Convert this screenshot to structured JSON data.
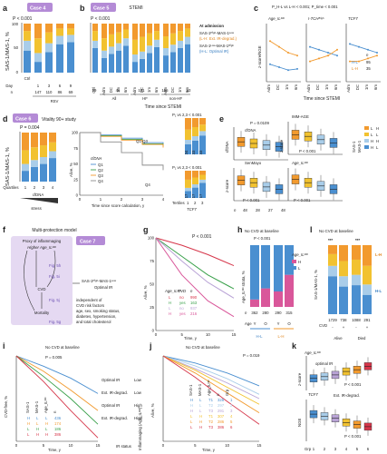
{
  "colors": {
    "blue": "#4a8fd0",
    "lightblue": "#a9cde9",
    "yellow": "#f2c230",
    "orange": "#f29a2e",
    "purple": "#b9a3d6",
    "grey": "#8c8c8c",
    "pink": "#d9579a",
    "red": "#d6364a",
    "green": "#39a04a"
  },
  "panels": {
    "a": "a",
    "b": "b",
    "c": "c",
    "d": "d",
    "e": "e",
    "f": "f",
    "g": "g",
    "h": "h",
    "i": "i",
    "j": "j",
    "k": "k",
    "l": "l"
  },
  "case4": "Case 4",
  "case5": "Case 5",
  "case6": "Case 6",
  "case7": "Case 7",
  "ylab_sasmas": "SAS-1/MAS-1, %",
  "a": {
    "p": "P < 0.001",
    "day_label": "Day",
    "days": [
      "1",
      "3",
      "6",
      "9"
    ],
    "n_label": "n",
    "ns": [
      "147",
      "110",
      "86",
      "69"
    ],
    "group": "RSV",
    "ctrl": "Ctrl",
    "yticks": [
      "0",
      "50",
      "100"
    ],
    "chart_data": {
      "type": "bar",
      "stacked": true,
      "categories": [
        "Ctrl",
        "1",
        "3",
        "6",
        "9"
      ],
      "series": [
        {
          "color": "blue",
          "values": [
            45,
            22,
            42,
            58,
            62
          ]
        },
        {
          "color": "lightblue",
          "values": [
            20,
            18,
            18,
            17,
            15
          ]
        },
        {
          "color": "yellow",
          "values": [
            20,
            30,
            22,
            15,
            13
          ]
        },
        {
          "color": "orange",
          "values": [
            15,
            30,
            18,
            10,
            10
          ]
        }
      ]
    }
  },
  "b": {
    "p": "P < 0.001",
    "title": "STEMI",
    "time_labels": [
      "Adm",
      "DC",
      "1m",
      "6m"
    ],
    "ctrl": "Ctrl",
    "ns": [
      "59",
      "46",
      "101",
      "185",
      "33"
    ],
    "groups": [
      "All",
      "HF",
      "non-HF"
    ],
    "xlabel": "Time since STEMI",
    "legend": [
      {
        "t": "At admission",
        "c": "#222"
      },
      {
        "t": "SAS-1ᴴⁱᵍʰ-MAS-1ᴸᵒʷ",
        "c": "#222"
      },
      {
        "t": "(L-H: Ext. IR-degrad.)",
        "c": "orange"
      },
      {
        "t": "SAS-1ᴸᵒʷ-MAS-1ᴴⁱᵍʰ",
        "c": "#222"
      },
      {
        "t": "(H-L: Optimal IR)",
        "c": "blue"
      }
    ],
    "chart_data": {
      "type": "bar",
      "stacked": true,
      "categories": [
        "Ctrl",
        "Adm",
        "DC",
        "1m",
        "6m",
        "Adm",
        "DC",
        "1m",
        "6m",
        "Adm",
        "DC",
        "1m",
        "6m"
      ],
      "series": [
        {
          "color": "blue",
          "values": [
            50,
            30,
            38,
            45,
            55,
            22,
            28,
            40,
            52,
            35,
            42,
            50,
            58
          ]
        },
        {
          "color": "lightblue",
          "values": [
            15,
            15,
            15,
            15,
            15,
            15,
            15,
            15,
            15,
            15,
            15,
            15,
            15
          ]
        },
        {
          "color": "yellow",
          "values": [
            20,
            25,
            25,
            22,
            18,
            30,
            30,
            25,
            18,
            24,
            23,
            20,
            17
          ]
        },
        {
          "color": "orange",
          "values": [
            15,
            30,
            22,
            18,
            12,
            33,
            27,
            20,
            15,
            26,
            20,
            15,
            10
          ]
        }
      ]
    }
  },
  "c": {
    "header": "P_H-L vs L-H < 0.001; P_time < 0.001",
    "titles": [
      "Age_ILᴰᴰ",
      "I-TCHᴮⁱᵍʰ",
      "TCF7"
    ],
    "ylabel": "z-score/NGE",
    "xlabels": [
      "Adm",
      "DC",
      "1m",
      "6m"
    ],
    "xlabel": "Time since STEMI",
    "legend": [
      "H-L",
      "L-H"
    ],
    "n_label": "n",
    "legend_ns": [
      "95",
      "35"
    ]
  },
  "d": {
    "title": "Vitality 90+ study",
    "p1": "P = 0.004",
    "p2": "P₁ vs 2,3 < 0.001",
    "p3": "P₁ vs 2,3 < 0.001",
    "quartiles": "Quartiles",
    "q": [
      "1",
      "2",
      "3",
      "4"
    ],
    "cfDNA": "cfDNA",
    "stress": "stress",
    "ylabel_surv": "Alive, %",
    "xlabel_surv": "Time since score calculation, y",
    "q1q3": "Q1-Q3",
    "q4": "Q4",
    "legend_title": "cfDNA",
    "legend": [
      "Q1",
      "Q2",
      "Q3",
      "Q4"
    ],
    "tertiles": "Tertiles",
    "t": [
      "1",
      "2",
      "3"
    ],
    "tn1": [
      "34",
      "33",
      "33"
    ],
    "tn2": [
      "17",
      "17",
      "17"
    ],
    "tcf7": "TCF7",
    "yticks": [
      "0",
      "50",
      "100"
    ],
    "sticks": [
      "0",
      "25",
      "50",
      "75",
      "100"
    ],
    "xticks": [
      "0",
      "1",
      "2",
      "3",
      "4"
    ],
    "chart_data": {
      "type": "line",
      "x": [
        0,
        1,
        2,
        3,
        4
      ],
      "series": [
        {
          "name": "Q1",
          "color": "blue",
          "values": [
            100,
            96,
            91,
            84,
            80
          ]
        },
        {
          "name": "Q2",
          "color": "green",
          "values": [
            100,
            95,
            89,
            82,
            79
          ]
        },
        {
          "name": "Q3",
          "color": "orange",
          "values": [
            100,
            94,
            88,
            81,
            76
          ]
        },
        {
          "name": "Q4",
          "color": "grey",
          "values": [
            100,
            85,
            68,
            48,
            40
          ]
        }
      ]
    }
  },
  "e": {
    "titles": [
      "cfDNA",
      "IMM-AGE",
      "SenMayo",
      "Age_ILᴰᴰ"
    ],
    "p": [
      "P = 0.0109",
      "P < 0.001",
      "P < 0.001",
      "P < 0.001"
    ],
    "ylabel1": "cfDNA",
    "ylabel2": "z-score",
    "ylabel3": "z-score",
    "n_label": "n",
    "ns": [
      "48",
      "28",
      "27",
      "48"
    ],
    "legend_title1": "SAS-1",
    "legend_title2": "MAS-1",
    "legend": [
      {
        "k": "L",
        "v": "H",
        "c": "orange"
      },
      {
        "k": "L",
        "v": "L",
        "c": "yellow"
      },
      {
        "k": "H",
        "v": "H",
        "c": "lightblue"
      },
      {
        "k": "H",
        "v": "L",
        "c": "blue"
      }
    ]
  },
  "f": {
    "title": "Multi-protection model",
    "proxy1": "Proxy of inflammaging",
    "proxy2": "Higher Age_ILᴰᴰ",
    "figs": [
      "Fig. 5h",
      "Fig. 5i",
      "Fig. 5j",
      "Fig. 5g"
    ],
    "cvd": "CVD",
    "mortality": "Mortality",
    "box1": "SAS-1ᴴⁱᵍʰ-MAS-1ᴸᵒʷ",
    "box2": "Optimal IR",
    "indep": [
      "independent of",
      "CVD risk factors",
      "age, sex, smoking status,",
      "diabetes, hypertension,",
      "and total cholesterol"
    ]
  },
  "g": {
    "p": "P < 0.001",
    "ylabel": "Alive, %",
    "xlabel": "Time, y",
    "xticks": [
      "0",
      "5",
      "10",
      "15"
    ],
    "yticks": [
      "0",
      "25",
      "50",
      "75",
      "100"
    ],
    "legend_h": [
      "Age_ILᴰᴰ",
      "CVD",
      "n"
    ],
    "rows": [
      {
        "a": "L",
        "c": "no",
        "n": "990",
        "col": "red"
      },
      {
        "a": "H",
        "c": "yes",
        "n": "163",
        "col": "green"
      },
      {
        "a": "L",
        "c": "no",
        "n": "937",
        "col": "purple"
      },
      {
        "a": "H",
        "c": "yes",
        "n": "216",
        "col": "pink"
      }
    ],
    "chart_data": {
      "type": "line",
      "x": [
        0,
        5,
        10,
        15
      ],
      "series": [
        {
          "color": "red",
          "values": [
            100,
            92,
            82,
            70
          ]
        },
        {
          "color": "green",
          "values": [
            100,
            80,
            60,
            45
          ]
        },
        {
          "color": "purple",
          "values": [
            100,
            75,
            52,
            35
          ]
        },
        {
          "color": "pink",
          "values": [
            100,
            60,
            32,
            15
          ]
        }
      ]
    }
  },
  "h": {
    "title": "No CVD at baseline",
    "p": "P < 0.001",
    "ylabel": "Age_ILᴰᴰ strata, %",
    "legend_title": "Age_ILᴰᴰ",
    "legend": [
      "H",
      "L"
    ],
    "n_label": "n",
    "ns": [
      "362",
      "280",
      "290",
      "315"
    ],
    "age_label": "Age",
    "ages": [
      "Y",
      "O",
      "Y",
      "O"
    ],
    "groups": [
      "H-L",
      "L-H"
    ],
    "yticks": [
      "0",
      "50",
      "100"
    ],
    "chart_data": {
      "type": "bar",
      "stacked": true,
      "categories": [
        "H-L Y",
        "H-L O",
        "L-H Y",
        "L-H O"
      ],
      "series": [
        {
          "name": "H",
          "color": "pink",
          "values": [
            12,
            30,
            25,
            52
          ]
        },
        {
          "name": "L",
          "color": "blue",
          "values": [
            88,
            70,
            75,
            48
          ]
        }
      ]
    }
  },
  "i": {
    "title": "No CVD at baseline",
    "p": "P = 0.005",
    "ylabel": "CVD-free, %",
    "xlabel": "Time, y",
    "xticks": [
      "0",
      "5",
      "10",
      "15"
    ],
    "yticks": [
      "0",
      "25",
      "50",
      "75",
      "100"
    ],
    "hdr": [
      "SAS-1",
      "MAS-1",
      "Age_ILᴰᴰ",
      "n"
    ],
    "rows": [
      {
        "v": [
          "H",
          "L",
          "L"
        ],
        "n": "436"
      },
      {
        "v": [
          "H",
          "L",
          "H"
        ],
        "n": "174"
      },
      {
        "v": [
          "L",
          "H",
          "L"
        ],
        "n": "186"
      },
      {
        "v": [
          "L",
          "H",
          "H"
        ],
        "n": "386"
      }
    ],
    "right_labels": [
      "Optimal IR",
      "Ext. IR-degrad.",
      "Optimal IR",
      "Ext. IR-degrad."
    ],
    "right_vals": [
      "Low",
      "Low",
      "High",
      "High"
    ],
    "foot": [
      "IR status",
      "Inflammaging (Age_ILᴰᴰ)"
    ],
    "chart_data": {
      "type": "line",
      "x": [
        0,
        5,
        10,
        15
      ],
      "series": [
        {
          "color": "blue",
          "values": [
            100,
            94,
            87,
            78
          ]
        },
        {
          "color": "orange",
          "values": [
            100,
            91,
            80,
            68
          ]
        },
        {
          "color": "green",
          "values": [
            100,
            88,
            75,
            60
          ]
        },
        {
          "color": "red",
          "values": [
            100,
            85,
            68,
            52
          ]
        }
      ]
    }
  },
  "j": {
    "title": "No CVD at baseline",
    "p": "P = 0.019",
    "ylabel": "Alive, %",
    "xlabel": "Time, y",
    "xticks": [
      "0",
      "5",
      "10",
      "15"
    ],
    "yticks": [
      "0",
      "25",
      "50",
      "75",
      "100"
    ],
    "hdr": [
      "SAS-1",
      "MAS-1",
      "Age_ILᴰᴰ",
      "n",
      "Grp"
    ],
    "rows": [
      {
        "v": [
          "H",
          "L",
          "T1"
        ],
        "n": "328",
        "g": "1"
      },
      {
        "v": [
          "H",
          "L",
          "T2"
        ],
        "n": "297",
        "g": "2"
      },
      {
        "v": [
          "H",
          "L",
          "T3"
        ],
        "n": "291",
        "g": "3"
      },
      {
        "v": [
          "L",
          "H",
          "T1"
        ],
        "n": "307",
        "g": "4"
      },
      {
        "v": [
          "L",
          "H",
          "T2"
        ],
        "n": "286",
        "g": "5"
      },
      {
        "v": [
          "L",
          "H",
          "T3"
        ],
        "n": "386",
        "g": "6"
      }
    ],
    "chart_data": {
      "type": "line",
      "x": [
        0,
        5,
        10,
        15
      ],
      "series": [
        {
          "color": "blue",
          "values": [
            100,
            95,
            88,
            79
          ]
        },
        {
          "color": "lightblue",
          "values": [
            100,
            93,
            84,
            73
          ]
        },
        {
          "color": "purple",
          "values": [
            100,
            91,
            81,
            70
          ]
        },
        {
          "color": "yellow",
          "values": [
            100,
            90,
            78,
            66
          ]
        },
        {
          "color": "orange",
          "values": [
            100,
            88,
            74,
            60
          ]
        },
        {
          "color": "red",
          "values": [
            100,
            85,
            68,
            52
          ]
        }
      ]
    }
  },
  "k": {
    "title1": "Age_ILᴰᴰ",
    "lab1": "optimal IR",
    "p1": "P < 0.001",
    "ylabel1": "z-score",
    "title2": "TCF7",
    "lab2": "Ext. IR-degrad.",
    "p2": "P < 0.001",
    "ylabel2": "NGE",
    "grp_label": "Grp",
    "grps": [
      "1",
      "2",
      "3",
      "4",
      "5",
      "6"
    ],
    "yt1": [
      "-2",
      "0",
      "2"
    ],
    "yt2": [
      "6.5",
      "7.5"
    ]
  },
  "l": {
    "title": "No CVD at baseline",
    "sig": [
      "***",
      "***"
    ],
    "ylabel": "SAS-1/MAS-1, %",
    "ns": [
      "1729",
      "738",
      "1088",
      "291"
    ],
    "cvd_label": "CVD",
    "cvd": [
      "-",
      "+",
      "-",
      "+"
    ],
    "groups": [
      "Alive",
      "Died"
    ],
    "lh": "L-H",
    "hl": "H-L",
    "yticks": [
      "0",
      "50",
      "100"
    ],
    "chart_data": {
      "type": "bar",
      "stacked": true,
      "categories": [
        "Alive CVD-",
        "Alive CVD+",
        "Died CVD-",
        "Died CVD+"
      ],
      "series": [
        {
          "color": "blue",
          "values": [
            55,
            40,
            42,
            28
          ]
        },
        {
          "color": "lightblue",
          "values": [
            15,
            15,
            15,
            15
          ]
        },
        {
          "color": "yellow",
          "values": [
            17,
            22,
            22,
            27
          ]
        },
        {
          "color": "orange",
          "values": [
            13,
            23,
            21,
            30
          ]
        }
      ]
    }
  }
}
